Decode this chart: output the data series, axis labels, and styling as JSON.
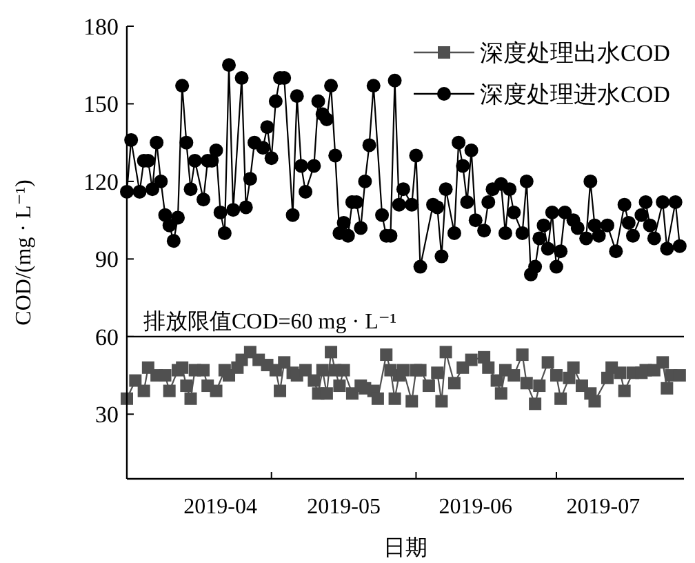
{
  "chart_data": {
    "type": "line",
    "xlabel": "日期",
    "ylabel": "COD/(mg · L⁻¹)",
    "xlim": [
      "2019-03-25",
      "2019-08-03"
    ],
    "ylim": [
      5,
      180
    ],
    "yticks": [
      30,
      60,
      90,
      120,
      150,
      180
    ],
    "xticks": [
      {
        "value": "2019-04-16",
        "label": "2019-04"
      },
      {
        "value": "2019-04-28",
        "label": null
      },
      {
        "value": "2019-05-15",
        "label": "2019-05"
      },
      {
        "value": "2019-06-01",
        "label": null
      },
      {
        "value": "2019-06-15",
        "label": "2019-06"
      },
      {
        "value": "2019-07-04",
        "label": null
      },
      {
        "value": "2019-07-15",
        "label": "2019-07"
      }
    ],
    "legend": "top right",
    "grid": false,
    "ref_lines": [
      {
        "axis": "y",
        "value": 60,
        "label": "排放限值COD=60 mg · L⁻¹",
        "color": "#000000"
      }
    ],
    "series": [
      {
        "name": "深度处理出水COD",
        "color": "#505050",
        "marker": "square",
        "x": [
          "2019-03-25",
          "2019-03-27",
          "2019-03-29",
          "2019-03-30",
          "2019-04-01",
          "2019-04-03",
          "2019-04-04",
          "2019-04-06",
          "2019-04-07",
          "2019-04-08",
          "2019-04-09",
          "2019-04-10",
          "2019-04-12",
          "2019-04-13",
          "2019-04-15",
          "2019-04-17",
          "2019-04-18",
          "2019-04-20",
          "2019-04-21",
          "2019-04-23",
          "2019-04-25",
          "2019-04-27",
          "2019-04-29",
          "2019-04-30",
          "2019-05-01",
          "2019-05-03",
          "2019-05-04",
          "2019-05-06",
          "2019-05-08",
          "2019-05-09",
          "2019-05-10",
          "2019-05-11",
          "2019-05-12",
          "2019-05-13",
          "2019-05-14",
          "2019-05-15",
          "2019-05-17",
          "2019-05-19",
          "2019-05-20",
          "2019-05-22",
          "2019-05-23",
          "2019-05-25",
          "2019-05-26",
          "2019-05-27",
          "2019-05-28",
          "2019-05-29",
          "2019-05-31",
          "2019-06-01",
          "2019-06-02",
          "2019-06-04",
          "2019-06-06",
          "2019-06-07",
          "2019-06-08",
          "2019-06-10",
          "2019-06-12",
          "2019-06-14",
          "2019-06-17",
          "2019-06-18",
          "2019-06-20",
          "2019-06-21",
          "2019-06-22",
          "2019-06-24",
          "2019-06-26",
          "2019-06-27",
          "2019-06-29",
          "2019-06-30",
          "2019-07-02",
          "2019-07-04",
          "2019-07-05",
          "2019-07-07",
          "2019-07-08",
          "2019-07-10",
          "2019-07-12",
          "2019-07-13",
          "2019-07-16",
          "2019-07-17",
          "2019-07-19",
          "2019-07-20",
          "2019-07-22",
          "2019-07-24",
          "2019-07-25",
          "2019-07-27",
          "2019-07-29",
          "2019-07-30",
          "2019-07-31",
          "2019-08-02"
        ],
        "values": [
          36,
          43,
          39,
          48,
          45,
          45,
          39,
          47,
          48,
          41,
          36,
          47,
          47,
          41,
          39,
          47,
          45,
          48,
          51,
          54,
          51,
          49,
          47,
          39,
          50,
          46,
          45,
          47,
          43,
          38,
          47,
          38,
          54,
          47,
          41,
          47,
          38,
          41,
          40,
          39,
          36,
          53,
          47,
          36,
          45,
          47,
          35,
          47,
          47,
          41,
          46,
          35,
          54,
          42,
          48,
          51,
          52,
          48,
          43,
          38,
          47,
          45,
          53,
          42,
          34,
          41,
          50,
          45,
          36,
          44,
          48,
          41,
          38,
          35,
          44,
          48,
          46,
          39,
          46,
          46,
          47,
          47,
          50,
          40,
          45,
          45
        ]
      },
      {
        "name": "深度处理进水COD",
        "color": "#000000",
        "marker": "circle",
        "x": [
          "2019-03-25",
          "2019-03-26",
          "2019-03-28",
          "2019-03-29",
          "2019-03-30",
          "2019-03-31",
          "2019-04-01",
          "2019-04-02",
          "2019-04-03",
          "2019-04-04",
          "2019-04-05",
          "2019-04-06",
          "2019-04-07",
          "2019-04-08",
          "2019-04-09",
          "2019-04-10",
          "2019-04-12",
          "2019-04-13",
          "2019-04-14",
          "2019-04-15",
          "2019-04-16",
          "2019-04-17",
          "2019-04-18",
          "2019-04-19",
          "2019-04-21",
          "2019-04-22",
          "2019-04-23",
          "2019-04-24",
          "2019-04-26",
          "2019-04-27",
          "2019-04-28",
          "2019-04-29",
          "2019-04-30",
          "2019-05-01",
          "2019-05-03",
          "2019-05-04",
          "2019-05-05",
          "2019-05-06",
          "2019-05-08",
          "2019-05-09",
          "2019-05-10",
          "2019-05-11",
          "2019-05-12",
          "2019-05-13",
          "2019-05-14",
          "2019-05-15",
          "2019-05-16",
          "2019-05-17",
          "2019-05-18",
          "2019-05-19",
          "2019-05-20",
          "2019-05-21",
          "2019-05-22",
          "2019-05-24",
          "2019-05-25",
          "2019-05-26",
          "2019-05-27",
          "2019-05-28",
          "2019-05-29",
          "2019-05-31",
          "2019-06-01",
          "2019-06-02",
          "2019-06-05",
          "2019-06-06",
          "2019-06-07",
          "2019-06-08",
          "2019-06-10",
          "2019-06-11",
          "2019-06-12",
          "2019-06-13",
          "2019-06-14",
          "2019-06-15",
          "2019-06-17",
          "2019-06-18",
          "2019-06-19",
          "2019-06-21",
          "2019-06-22",
          "2019-06-23",
          "2019-06-24",
          "2019-06-26",
          "2019-06-27",
          "2019-06-28",
          "2019-06-29",
          "2019-06-30",
          "2019-07-01",
          "2019-07-02",
          "2019-07-03",
          "2019-07-04",
          "2019-07-05",
          "2019-07-06",
          "2019-07-08",
          "2019-07-09",
          "2019-07-11",
          "2019-07-12",
          "2019-07-13",
          "2019-07-14",
          "2019-07-16",
          "2019-07-18",
          "2019-07-20",
          "2019-07-21",
          "2019-07-22",
          "2019-07-24",
          "2019-07-25",
          "2019-07-26",
          "2019-07-27",
          "2019-07-29",
          "2019-07-30",
          "2019-08-01",
          "2019-08-02"
        ],
        "values": [
          116,
          136,
          116,
          128,
          128,
          117,
          135,
          120,
          107,
          103,
          97,
          106,
          157,
          135,
          117,
          128,
          113,
          128,
          128,
          132,
          108,
          100,
          165,
          109,
          160,
          110,
          121,
          135,
          133,
          141,
          129,
          151,
          160,
          160,
          107,
          153,
          126,
          116,
          126,
          151,
          146,
          144,
          157,
          130,
          100,
          104,
          99,
          112,
          112,
          102,
          120,
          134,
          157,
          107,
          99,
          99,
          159,
          111,
          117,
          111,
          130,
          87,
          111,
          110,
          91,
          117,
          100,
          135,
          126,
          112,
          132,
          105,
          101,
          112,
          117,
          119,
          100,
          117,
          108,
          100,
          120,
          84,
          87,
          98,
          103,
          94,
          108,
          87,
          93,
          108,
          105,
          102,
          98,
          120,
          103,
          99,
          103,
          93,
          111,
          104,
          99,
          107,
          112,
          103,
          98,
          112,
          94,
          112,
          95
        ]
      }
    ]
  }
}
